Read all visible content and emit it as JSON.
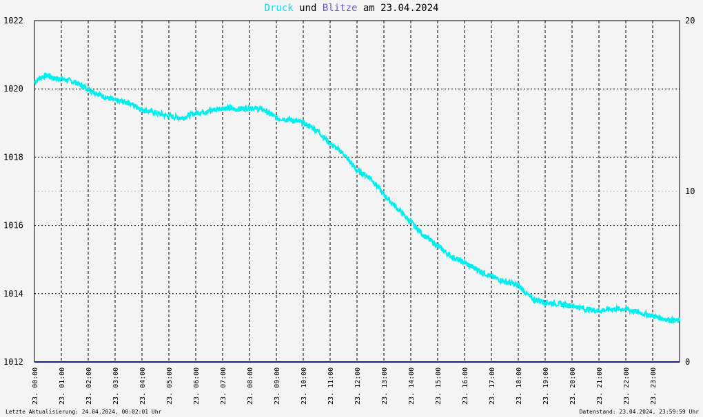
{
  "title": {
    "series1": "Druck",
    "connector": "und",
    "series2": "Blitze",
    "date_prefix": "am",
    "date": "23.04.2024"
  },
  "footer": {
    "last_update": "Letzte Aktualisierung: 24.04.2024, 00:02:01 Uhr",
    "data_state": "Datenstand: 23.04.2024, 23:59:59 Uhr"
  },
  "colors": {
    "pressure": "#00eeee",
    "lightning": "#1c1c8c",
    "title_druck": "#00e5ee",
    "title_blitze": "#6a5acd",
    "background": "#f4f4f4"
  },
  "chart_data": {
    "type": "line",
    "title": "Druck und Blitze am 23.04.2024",
    "x_unit": "hour",
    "xlim": [
      0,
      24
    ],
    "x_ticks": [
      "23. 00:00",
      "23. 01:00",
      "23. 02:00",
      "23. 03:00",
      "23. 04:00",
      "23. 05:00",
      "23. 06:00",
      "23. 07:00",
      "23. 08:00",
      "23. 09:00",
      "23. 10:00",
      "23. 11:00",
      "23. 12:00",
      "23. 13:00",
      "23. 14:00",
      "23. 15:00",
      "23. 16:00",
      "23. 17:00",
      "23. 18:00",
      "23. 19:00",
      "23. 20:00",
      "23. 21:00",
      "23. 22:00",
      "23. 23:00"
    ],
    "y_left": {
      "ylim": [
        1012,
        1022
      ],
      "ticks": [
        "1012",
        "1014",
        "1016",
        "1018",
        "1020",
        "1022"
      ]
    },
    "y_right": {
      "ylim": [
        0,
        20
      ],
      "ticks": [
        "0",
        "10",
        "20"
      ]
    },
    "grid": true,
    "series": [
      {
        "name": "Druck",
        "axis": "left",
        "x": [
          0,
          0.25,
          0.5,
          0.75,
          1,
          1.5,
          2,
          2.5,
          3,
          3.5,
          4,
          4.5,
          5,
          5.5,
          6,
          6.5,
          7,
          7.5,
          8,
          8.5,
          9,
          9.5,
          10,
          10.5,
          11,
          11.5,
          12,
          12.5,
          13,
          13.5,
          14,
          14.5,
          15,
          15.5,
          16,
          16.5,
          17,
          17.5,
          18,
          18.5,
          19,
          19.5,
          20,
          20.5,
          21,
          21.5,
          22,
          22.5,
          23,
          23.5,
          24
        ],
        "values": [
          1020.2,
          1020.35,
          1020.4,
          1020.3,
          1020.3,
          1020.2,
          1020.0,
          1019.8,
          1019.65,
          1019.6,
          1019.4,
          1019.3,
          1019.2,
          1019.15,
          1019.3,
          1019.35,
          1019.45,
          1019.4,
          1019.45,
          1019.4,
          1019.15,
          1019.1,
          1019.0,
          1018.8,
          1018.4,
          1018.1,
          1017.6,
          1017.4,
          1016.9,
          1016.5,
          1016.1,
          1015.7,
          1015.4,
          1015.1,
          1014.9,
          1014.7,
          1014.5,
          1014.35,
          1014.25,
          1013.85,
          1013.75,
          1013.7,
          1013.65,
          1013.55,
          1013.5,
          1013.55,
          1013.55,
          1013.45,
          1013.35,
          1013.25,
          1013.2
        ]
      },
      {
        "name": "Blitze",
        "axis": "right",
        "x": [
          0,
          24
        ],
        "values": [
          0,
          0
        ]
      }
    ]
  }
}
